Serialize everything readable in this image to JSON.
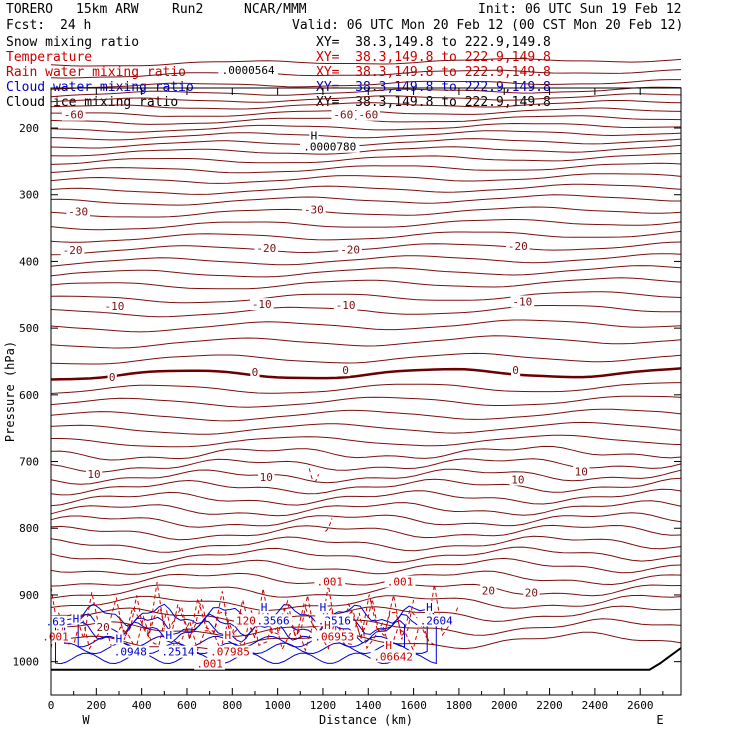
{
  "header": {
    "model": "TORERO",
    "resolution": "15km ARW",
    "run": "Run2",
    "org": "NCAR/MMM",
    "init": "Init: 06 UTC Sun 19 Feb 12",
    "fcst_label": "Fcst:",
    "fcst_value": "24 h",
    "valid": "Valid: 06 UTC Mon 20 Feb 12 (00 CST Mon 20 Feb 12)"
  },
  "fields": [
    {
      "name": "Snow mixing ratio",
      "color": "#000000",
      "xy": "XY=  38.3,149.8 to 222.9,149.8",
      "xy_color": "#000000"
    },
    {
      "name": "Temperature",
      "color": "#cc0000",
      "xy": "XY=  38.3,149.8 to 222.9,149.8",
      "xy_color": "#cc0000"
    },
    {
      "name": "Rain water mixing ratio",
      "color": "#cc0000",
      "xy": "XY=  38.3,149.8 to 222.9,149.8",
      "xy_color": "#cc0000"
    },
    {
      "name": "Cloud water mixing ratio",
      "color": "#0000cc",
      "xy": "XY=  38.3,149.8 to 222.9,149.8",
      "xy_color": "#0000cc"
    },
    {
      "name": "Cloud ice mixing ratio",
      "color": "#000000",
      "xy": "XY=  38.3,149.8 to 222.9,149.8",
      "xy_color": "#000000"
    }
  ],
  "chart_data": {
    "type": "line",
    "xlabel": "Distance (km)",
    "ylabel": "Pressure (hPa)",
    "xlim": [
      0,
      2780
    ],
    "ylim": [
      1000,
      100
    ],
    "x_ticks": [
      0,
      200,
      400,
      600,
      800,
      1000,
      1200,
      1400,
      1600,
      1800,
      2000,
      2200,
      2400,
      2600
    ],
    "y_ticks": [
      200,
      300,
      400,
      500,
      600,
      700,
      800,
      900,
      1000
    ],
    "west_label": "W",
    "east_label": "E",
    "temperature_labels": [
      {
        "text": "-60",
        "x": 100,
        "p": 180
      },
      {
        "text": "-60",
        "x": 1290,
        "p": 180
      },
      {
        "text": "-60",
        "x": 1400,
        "p": 180
      },
      {
        "text": "-30",
        "x": 120,
        "p": 325
      },
      {
        "text": "-30",
        "x": 1160,
        "p": 322
      },
      {
        "text": "-20",
        "x": 95,
        "p": 383
      },
      {
        "text": "-20",
        "x": 950,
        "p": 380
      },
      {
        "text": "-20",
        "x": 1320,
        "p": 382
      },
      {
        "text": "-20",
        "x": 2060,
        "p": 377
      },
      {
        "text": "-10",
        "x": 280,
        "p": 467
      },
      {
        "text": "-10",
        "x": 930,
        "p": 464
      },
      {
        "text": "-10",
        "x": 1300,
        "p": 465
      },
      {
        "text": "-10",
        "x": 2080,
        "p": 460
      },
      {
        "text": "0",
        "x": 270,
        "p": 573
      },
      {
        "text": "0",
        "x": 900,
        "p": 566
      },
      {
        "text": "0",
        "x": 1300,
        "p": 563
      },
      {
        "text": "0",
        "x": 2050,
        "p": 563
      },
      {
        "text": "10",
        "x": 190,
        "p": 719
      },
      {
        "text": "10",
        "x": 950,
        "p": 723
      },
      {
        "text": "10",
        "x": 2060,
        "p": 727
      },
      {
        "text": "10",
        "x": 2340,
        "p": 715
      },
      {
        "text": "20",
        "x": 1930,
        "p": 893
      },
      {
        "text": "20",
        "x": 2120,
        "p": 896
      },
      {
        "text": "20",
        "x": 230,
        "p": 948
      }
    ],
    "snow_labels": [
      {
        "text": ".0000564",
        "x": 870,
        "p": 113
      },
      {
        "text": "H",
        "x": 1160,
        "p": 211
      },
      {
        "text": ".0000780",
        "x": 1230,
        "p": 228
      }
    ],
    "cloud_water_labels": [
      {
        "text": ".63",
        "x": 20,
        "p": 940
      },
      {
        "text": "H",
        "x": 110,
        "p": 935
      },
      {
        "text": "H",
        "x": 520,
        "p": 960
      },
      {
        "text": ".2514",
        "x": 560,
        "p": 985
      },
      {
        "text": "H",
        "x": 940,
        "p": 918
      },
      {
        "text": ".3566",
        "x": 980,
        "p": 938
      },
      {
        "text": "H",
        "x": 1200,
        "p": 918
      },
      {
        "text": ".3516",
        "x": 1250,
        "p": 938
      },
      {
        "text": "H",
        "x": 1670,
        "p": 918
      },
      {
        "text": ".2604",
        "x": 1700,
        "p": 938
      },
      {
        "text": ".0948",
        "x": 350,
        "p": 985
      },
      {
        "text": "H",
        "x": 300,
        "p": 965
      }
    ],
    "rain_labels": [
      {
        "text": ".001",
        "x": 20,
        "p": 962
      },
      {
        "text": "H",
        "x": 780,
        "p": 960
      },
      {
        "text": ".07985",
        "x": 790,
        "p": 985
      },
      {
        "text": "H",
        "x": 1220,
        "p": 945
      },
      {
        "text": ".06953",
        "x": 1250,
        "p": 962
      },
      {
        "text": "H",
        "x": 1490,
        "p": 975
      },
      {
        "text": ".06642",
        "x": 1510,
        "p": 992
      },
      {
        "text": ".001",
        "x": 1230,
        "p": 880
      },
      {
        "text": ".001",
        "x": 1540,
        "p": 880
      },
      {
        "text": ".001",
        "x": 700,
        "p": 1003
      },
      {
        "text": "120",
        "x": 860,
        "p": 938
      }
    ]
  }
}
